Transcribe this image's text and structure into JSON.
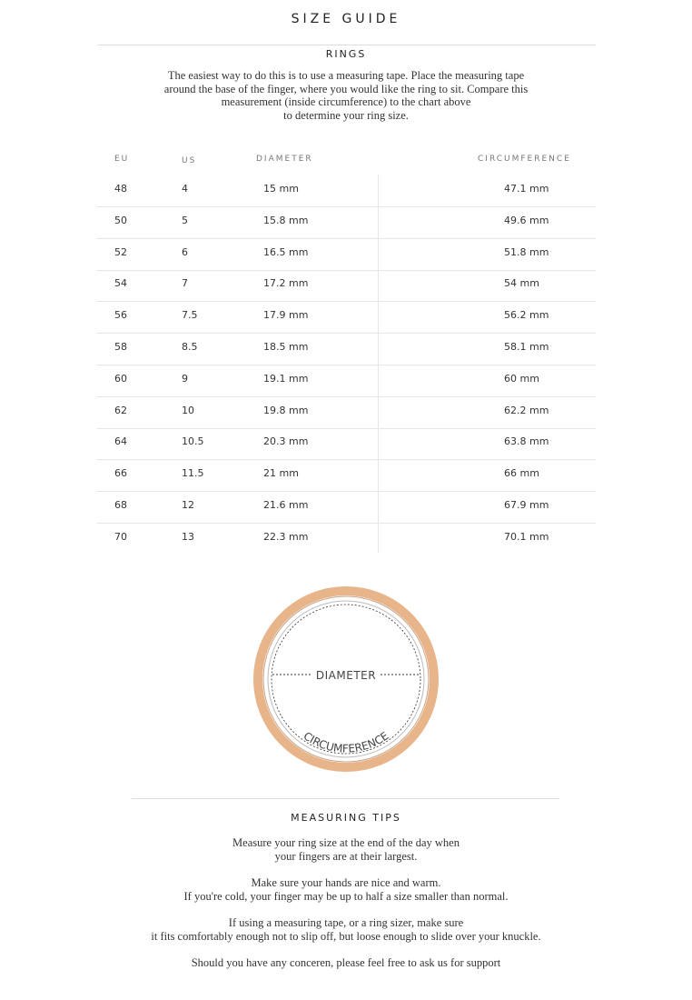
{
  "title": "SIZE GUIDE",
  "section": "RINGS",
  "intro": [
    "The easiest way to do this is to use a measuring tape. Place the measuring tape",
    "around the base of the finger, where you would like the ring to sit. Compare this",
    "measurement (inside circumference) to the chart above",
    "to determine your ring size."
  ],
  "table": {
    "headers": [
      "EU",
      "US",
      "DIAMETER",
      "CIRCUMFERENCE"
    ],
    "rows": [
      [
        "48",
        "4",
        "15 mm",
        "47.1 mm"
      ],
      [
        "50",
        "5",
        "15.8 mm",
        "49.6 mm"
      ],
      [
        "52",
        "6",
        "16.5 mm",
        "51.8 mm"
      ],
      [
        "54",
        "7",
        "17.2 mm",
        "54 mm"
      ],
      [
        "56",
        "7.5",
        "17.9 mm",
        "56.2 mm"
      ],
      [
        "58",
        "8.5",
        "18.5 mm",
        "58.1 mm"
      ],
      [
        "60",
        "9",
        "19.1 mm",
        "60 mm"
      ],
      [
        "62",
        "10",
        "19.8 mm",
        "62.2 mm"
      ],
      [
        "64",
        "10.5",
        "20.3 mm",
        "63.8 mm"
      ],
      [
        "66",
        "11.5",
        "21 mm",
        "66 mm"
      ],
      [
        "68",
        "12",
        "21.6 mm",
        "67.9 mm"
      ],
      [
        "70",
        "13",
        "22.3 mm",
        "70.1 mm"
      ]
    ]
  },
  "diagram": {
    "diameter_label": "DIAMETER",
    "circumference_label": "CIRCUMFERENCE",
    "ring_color": "#e8b48a"
  },
  "tips": {
    "heading": "MEASURING TIPS",
    "paragraphs": [
      [
        "Measure your ring size at the end of the day when",
        "your fingers are at their largest."
      ],
      [
        "Make sure your hands are nice and warm.",
        "If you're cold, your finger may be up to half a size smaller than normal."
      ],
      [
        "If using a measuring tape, or a ring sizer, make sure",
        "it fits comfortably enough not to slip off, but loose enough to slide over your knuckle."
      ],
      [
        "Should you have any conceren, please feel free to ask us for support"
      ]
    ]
  }
}
